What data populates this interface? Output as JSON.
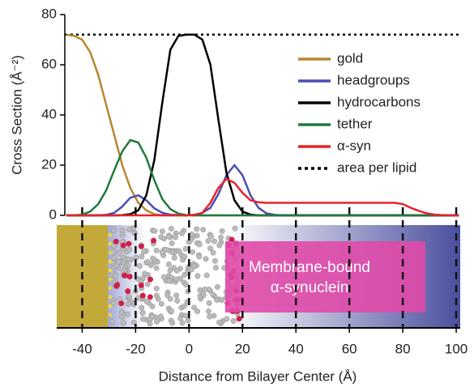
{
  "chart_data": {
    "type": "line",
    "xlabel": "Distance from Bilayer Center (Å)",
    "ylabel": "Cross Section (Å⁻²)",
    "x": [
      -46,
      -43,
      -40,
      -37,
      -34,
      -31,
      -28,
      -25,
      -22,
      -19,
      -16,
      -13,
      -10,
      -7,
      -4,
      -1,
      2,
      5,
      8,
      11,
      14,
      17,
      20,
      23,
      26,
      29,
      32,
      35,
      38,
      41,
      44,
      47,
      50,
      53,
      56,
      59,
      62,
      65,
      68,
      71,
      74,
      77,
      80,
      83,
      86,
      89,
      92,
      95,
      98,
      101
    ],
    "series": [
      {
        "name": "gold",
        "color": "#b8862f",
        "values": [
          72,
          71.5,
          70,
          65,
          56,
          44,
          32,
          20,
          11,
          5,
          2,
          0.5,
          0,
          0,
          0,
          0,
          0,
          0,
          0,
          0,
          0,
          0,
          0,
          0,
          0,
          0,
          0,
          0,
          0,
          0,
          0,
          0,
          0,
          0,
          0,
          0,
          0,
          0,
          0,
          0,
          0,
          0,
          0,
          0,
          0,
          0,
          0,
          0,
          0,
          0
        ]
      },
      {
        "name": "headgroups",
        "color": "#4a4fb0",
        "values": [
          0,
          0,
          0,
          0,
          0,
          0.2,
          1,
          3.5,
          7,
          8,
          6,
          2.8,
          1,
          0.3,
          0.1,
          0,
          0.2,
          1,
          3,
          8.5,
          16,
          20,
          16,
          8,
          3,
          0.8,
          0.2,
          0,
          0,
          0,
          0,
          0,
          0,
          0,
          0,
          0,
          0,
          0,
          0,
          0,
          0,
          0,
          0,
          0,
          0,
          0,
          0,
          0,
          0,
          0
        ]
      },
      {
        "name": "hydrocarbons",
        "color": "#000000",
        "values": [
          0,
          0,
          0,
          0,
          0,
          0,
          0,
          0.1,
          0.5,
          2,
          8,
          22,
          45,
          66,
          71.5,
          72,
          72,
          70,
          60,
          38,
          17,
          6,
          1.5,
          0.3,
          0,
          0,
          0,
          0,
          0,
          0,
          0,
          0,
          0,
          0,
          0,
          0,
          0,
          0,
          0,
          0,
          0,
          0,
          0,
          0,
          0,
          0,
          0,
          0,
          0,
          0
        ]
      },
      {
        "name": "tether",
        "color": "#1f7a3c",
        "values": [
          0,
          0,
          0.3,
          1.5,
          4.5,
          10,
          18,
          25.5,
          30,
          29,
          23,
          14,
          6.5,
          2.5,
          0.7,
          0.1,
          0,
          0,
          0,
          0,
          0,
          0,
          0,
          0,
          0,
          0,
          0,
          0,
          0,
          0,
          0,
          0,
          0,
          0,
          0,
          0,
          0,
          0,
          0,
          0,
          0,
          0,
          0,
          0,
          0,
          0,
          0,
          0,
          0,
          0
        ]
      },
      {
        "name": "α-syn",
        "color": "#e8222a",
        "values": [
          0,
          0,
          0,
          0,
          0,
          0,
          0,
          0,
          0,
          0,
          0,
          0,
          0,
          0,
          0,
          0,
          0.2,
          1,
          5,
          11,
          14.5,
          13,
          9,
          6,
          5.2,
          5,
          5,
          5,
          5,
          5,
          5,
          5,
          5,
          5,
          5,
          5,
          5,
          5,
          5,
          5,
          5,
          5,
          4.5,
          3,
          1.8,
          0.8,
          0.3,
          0.1,
          0,
          0
        ]
      }
    ],
    "reference_line": {
      "name": "area per lipid",
      "value": 72,
      "color": "#000000"
    },
    "xlim": [
      -46.5,
      101.5
    ],
    "xticks": [
      -40,
      -20,
      0,
      20,
      40,
      60,
      80,
      100
    ],
    "ylim": [
      0,
      80
    ],
    "yticks": [
      0,
      20,
      40,
      60,
      80
    ],
    "legend": "upper right",
    "annotation": [
      "Membrane-bound",
      "α-synuclein"
    ]
  }
}
